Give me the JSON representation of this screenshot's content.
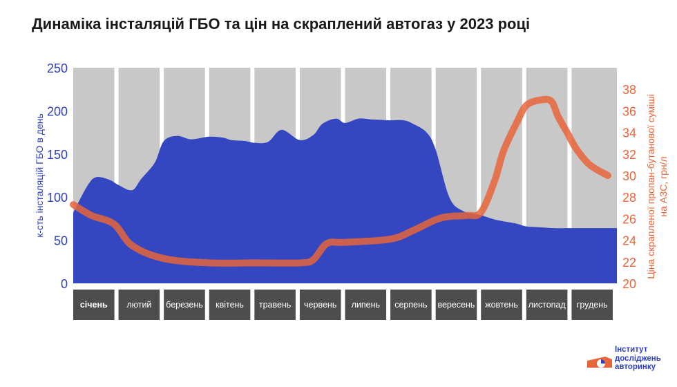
{
  "title": "Динаміка інсталяцій ГБО та цін на скраплений автогаз у 2023 році",
  "logo": {
    "lines": [
      "Інститут",
      "досліджень",
      "авторинку"
    ]
  },
  "colors": {
    "area": "#3447c0",
    "line": "#e8653a",
    "month_bg": "#c8c8c8",
    "month_label_bg": "#4d4d4d",
    "left_axis": "#2c3fbf",
    "right_axis": "#e8653a"
  },
  "chart_data": {
    "type": "area",
    "title": "Динаміка інсталяцій ГБО та цін на скраплений автогаз у 2023 році",
    "categories": [
      "січень",
      "лютий",
      "березень",
      "квітень",
      "травень",
      "червень",
      "липень",
      "серпень",
      "вересень",
      "жовтень",
      "листопад",
      "грудень"
    ],
    "y_left": {
      "label": "к-сть інсталяцій ГБО в день",
      "range": [
        0,
        250
      ],
      "ticks": [
        0,
        50,
        100,
        150,
        200,
        250
      ]
    },
    "y_right": {
      "label": "Ціна скрапленої пропан-бутанової суміші на АЗС, грн/л",
      "range": [
        20,
        40
      ],
      "ticks": [
        20,
        22,
        24,
        26,
        28,
        30,
        32,
        34,
        36,
        38
      ]
    },
    "grid": false,
    "legend": "none",
    "series": [
      {
        "axis": "left",
        "type": "area",
        "x": [
          0,
          0.3,
          0.5,
          0.8,
          1.0,
          1.3,
          1.5,
          1.8,
          2.0,
          2.3,
          2.6,
          3.0,
          3.3,
          3.5,
          3.8,
          4.0,
          4.3,
          4.6,
          5.0,
          5.3,
          5.5,
          5.8,
          6.0,
          6.3,
          6.6,
          7.0,
          7.3,
          7.5,
          7.8,
          8.0,
          8.3,
          8.6,
          9.0,
          9.3,
          9.6,
          9.8,
          10.0,
          10.3,
          10.6,
          11.0,
          11.3,
          11.6,
          12.0
        ],
        "values": [
          82,
          112,
          123,
          120,
          114,
          108,
          121,
          140,
          165,
          171,
          167,
          170,
          169,
          166,
          165,
          163,
          164,
          178,
          166,
          172,
          185,
          191,
          186,
          191,
          190,
          189,
          189,
          185,
          175,
          155,
          100,
          84,
          79,
          74,
          71,
          69,
          66,
          65,
          64,
          64,
          64,
          64,
          64
        ]
      },
      {
        "axis": "right",
        "type": "line",
        "x": [
          0,
          0.4,
          0.9,
          1.3,
          2.0,
          3.0,
          4.0,
          5.0,
          5.3,
          5.6,
          6.0,
          7.0,
          7.5,
          8.0,
          8.3,
          8.7,
          9.0,
          9.3,
          9.5,
          9.8,
          10.0,
          10.3,
          10.55,
          10.7,
          10.9,
          11.1,
          11.4,
          11.8
        ],
        "values": [
          27.3,
          26.3,
          25.5,
          23.5,
          22.3,
          21.9,
          21.9,
          21.9,
          22.2,
          23.7,
          23.8,
          24.1,
          24.9,
          25.9,
          26.2,
          26.3,
          26.6,
          29.5,
          32.3,
          35.0,
          36.5,
          37.0,
          36.9,
          35.5,
          34.0,
          32.5,
          31.0,
          30.0
        ]
      }
    ]
  }
}
